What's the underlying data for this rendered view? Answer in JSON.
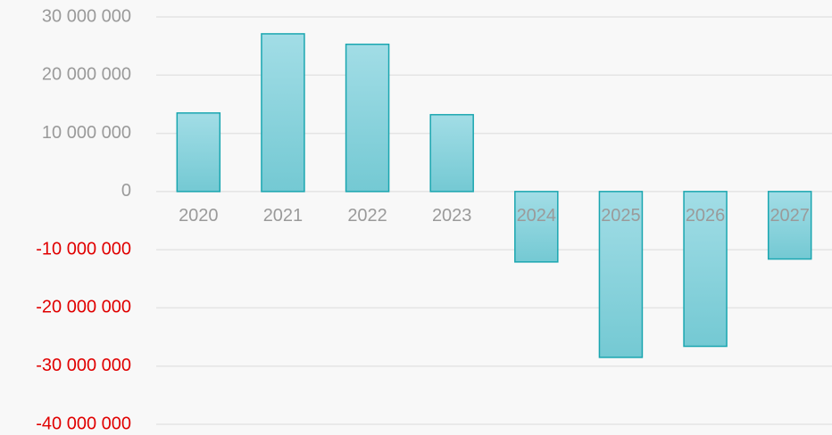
{
  "chart_data": {
    "type": "bar",
    "categories": [
      "2020",
      "2021",
      "2022",
      "2023",
      "2024",
      "2025",
      "2026",
      "2027"
    ],
    "values": [
      13500000,
      27100000,
      25300000,
      13200000,
      -12100000,
      -28500000,
      -26600000,
      -11600000
    ],
    "color": "#80ccd6",
    "edge_color": "#1aa6b0",
    "ylim": [
      -40000000,
      30000000
    ],
    "yticks": [
      {
        "value": -40000000,
        "label": "-40 000 000"
      },
      {
        "value": -30000000,
        "label": "-30 000 000"
      },
      {
        "value": -20000000,
        "label": "-20 000 000"
      },
      {
        "value": -10000000,
        "label": "-10 000 000"
      },
      0,
      {
        "value": 10000000,
        "label": "10 000 000"
      },
      {
        "value": 20000000,
        "label": "20 000 000"
      },
      {
        "value": 30000000,
        "label": "30 000 000"
      }
    ],
    "grid": true,
    "tick_label_color": "#9a9a9a",
    "negative_tick_label_color": "#e00000"
  }
}
